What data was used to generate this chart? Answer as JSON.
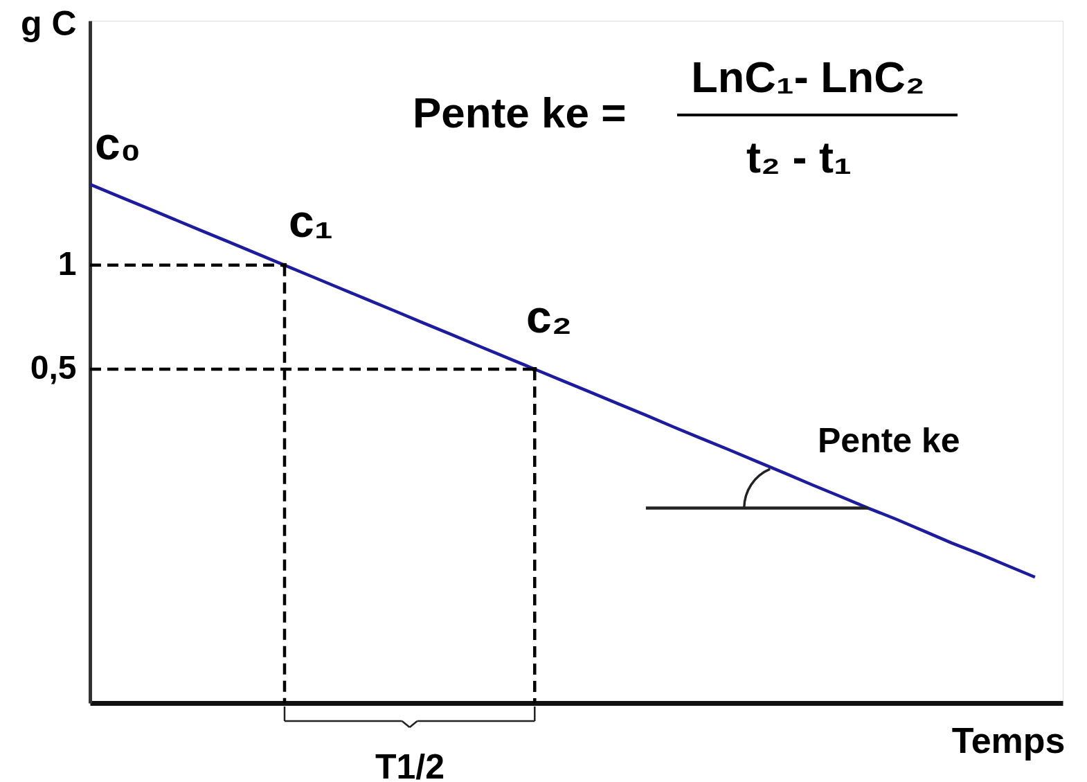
{
  "chart_data": {
    "type": "line",
    "xlabel": "Temps",
    "ylabel": "g C",
    "categories": [
      null,
      null,
      null,
      null,
      null,
      null,
      null,
      null,
      null,
      null,
      null,
      null,
      null,
      null,
      null,
      null,
      null,
      null,
      null,
      null,
      null,
      null,
      null,
      null,
      null,
      null,
      null,
      null,
      null,
      null,
      null,
      null,
      null,
      null,
      null,
      null
    ],
    "series": [
      {
        "color": "#1c1c9c",
        "values": [
          1.714,
          1.587,
          1.47,
          1.361,
          1.26,
          1.167,
          1.08,
          1,
          0.926,
          0.857,
          0.794,
          0.735,
          0.68,
          0.63,
          0.583,
          0.54,
          0.5,
          0.463,
          0.429,
          0.397,
          0.368,
          0.34,
          0.315,
          0.292,
          0.27,
          0.25,
          0.231,
          0.214,
          0.198,
          0.184,
          0.17,
          0.157,
          0.146,
          0.135,
          0.125,
          null
        ]
      },
      {
        "color": "#000000",
        "line_style": "dashed",
        "values": [
          1,
          1,
          1,
          1,
          1,
          1,
          1,
          1,
          null,
          null,
          null,
          null,
          null,
          null,
          null,
          null,
          null,
          null,
          null,
          null,
          null,
          null,
          null,
          null,
          null,
          null,
          null,
          null,
          null,
          null,
          null,
          null,
          null,
          null,
          null,
          null
        ]
      },
      {
        "color": "#000000",
        "line_style": "dashed",
        "values": [
          0.5,
          0.5,
          0.5,
          0.5,
          0.5,
          0.5,
          0.5,
          0.5,
          0.5,
          0.5,
          0.5,
          0.5,
          0.5,
          0.5,
          0.5,
          0.5,
          0.5,
          null,
          null,
          null,
          null,
          null,
          null,
          null,
          null,
          null,
          null,
          null,
          null,
          null,
          null,
          null,
          null,
          null,
          null,
          null
        ]
      },
      {
        "type": "lollipop",
        "color": "#000000",
        "line_style": "dashed",
        "marker": "square",
        "values": [
          null,
          null,
          null,
          null,
          null,
          null,
          null,
          1,
          null,
          null,
          null,
          null,
          null,
          null,
          null,
          null,
          0.5,
          null,
          null,
          null,
          null,
          null,
          null,
          null,
          null,
          null,
          null,
          null,
          null,
          null,
          null,
          null,
          null,
          null,
          null,
          null
        ]
      },
      {
        "color": "#222222",
        "values": [
          null,
          null,
          null,
          null,
          null,
          null,
          null,
          null,
          null,
          null,
          null,
          null,
          null,
          null,
          null,
          null,
          null,
          null,
          null,
          null,
          0.198,
          0.198,
          0.198,
          0.198,
          0.198,
          0.198,
          0.198,
          0.198,
          0.198,
          null,
          null,
          null,
          null,
          null,
          null,
          null
        ]
      }
    ],
    "ylim": [
      0.054,
      5.1
    ],
    "yticks": [
      1,
      {
        "value": 0.5,
        "label": "0,5"
      }
    ],
    "log": true,
    "tick_labels": "y",
    "annotations": [
      "c₀",
      "c₁",
      "c₂",
      "Pente ke =",
      "LnC₁- LnC₂",
      "t₂ - t₁",
      "Pente ke",
      "T1/2"
    ]
  }
}
